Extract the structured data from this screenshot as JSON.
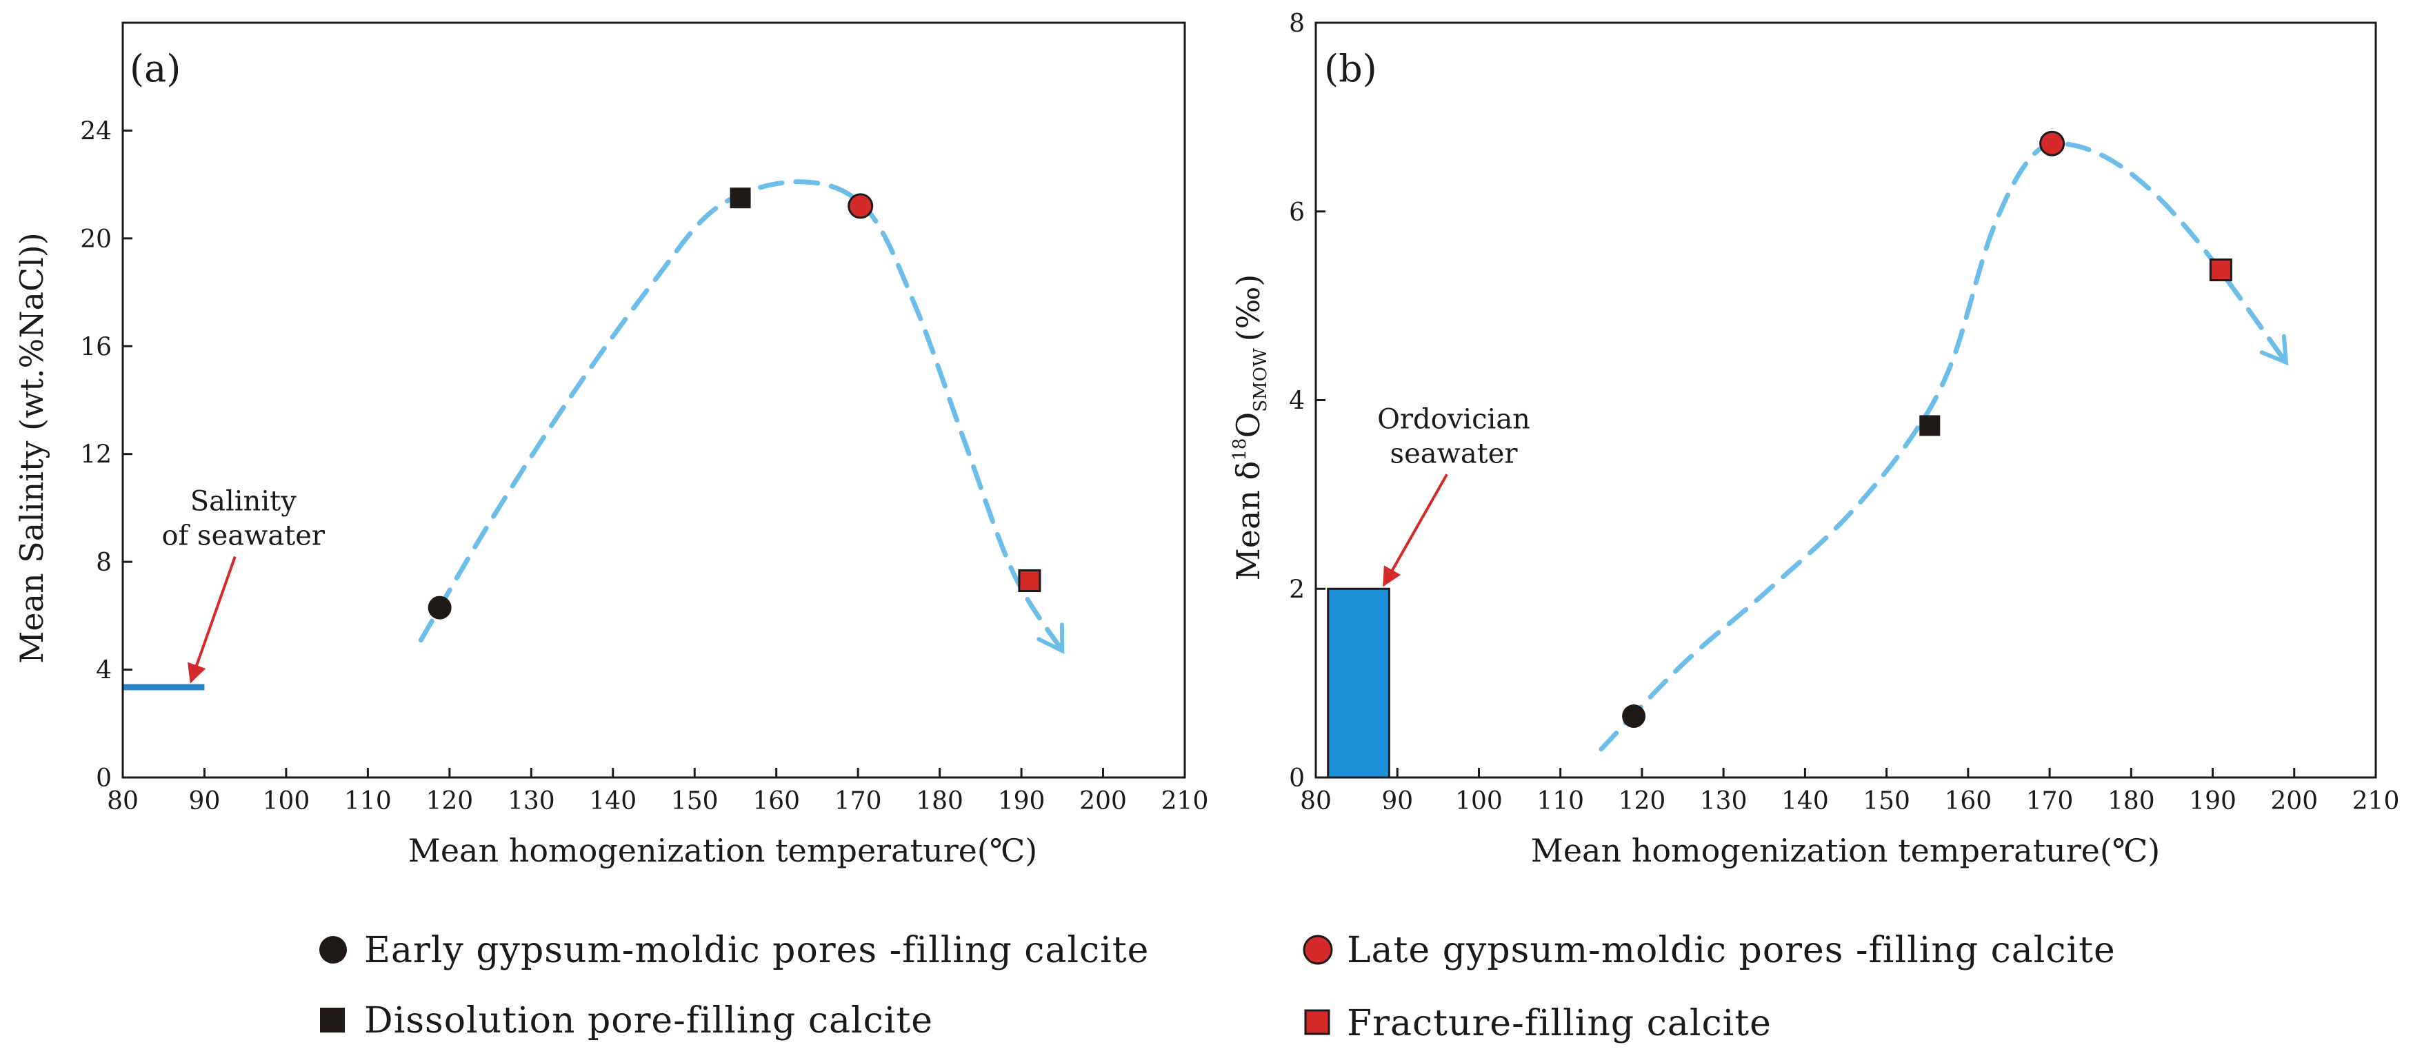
{
  "colors": {
    "early": "#1f1a17",
    "late": "#d42a2a",
    "dissolution": "#1f1a17",
    "fracture": "#d42a2a",
    "trend": "#6cbde9",
    "seawater_line": "#2a86c8",
    "seawater_box": "#1c8fd8",
    "arrow": "#d42a2a"
  },
  "legend": {
    "early": "Early gypsum-moldic pores -filling calcite",
    "dissolution": "Dissolution pore-filling calcite",
    "late": "Late gypsum-moldic pores -filling calcite",
    "fracture": "Fracture-filling calcite"
  },
  "chart_data": [
    {
      "panel": "(a)",
      "type": "scatter",
      "xlabel": "Mean homogenization temperature(℃)",
      "ylabel": "Mean Salinity (wt.%NaCl))",
      "xlim": [
        80,
        210
      ],
      "ylim": [
        0,
        28
      ],
      "xticks": [
        80,
        90,
        100,
        110,
        120,
        130,
        140,
        150,
        160,
        170,
        180,
        190,
        200,
        210
      ],
      "yticks": [
        0,
        4,
        8,
        12,
        16,
        20,
        24
      ],
      "series": [
        {
          "name": "Early gypsum-moldic pores -filling calcite",
          "marker": "circle",
          "color": "#1f1a17",
          "points": [
            [
              118.8,
              6.3
            ]
          ]
        },
        {
          "name": "Dissolution pore-filling calcite",
          "marker": "square",
          "color": "#1f1a17",
          "points": [
            [
              155.6,
              21.5
            ]
          ]
        },
        {
          "name": "Late gypsum-moldic pores -filling calcite",
          "marker": "circle",
          "color": "#d42a2a",
          "points": [
            [
              170.3,
              21.2
            ]
          ]
        },
        {
          "name": "Fracture-filling calcite",
          "marker": "square",
          "color": "#d42a2a",
          "points": [
            [
              191,
              7.3
            ]
          ]
        }
      ],
      "trend": [
        [
          116.5,
          5.1
        ],
        [
          125,
          9.5
        ],
        [
          135,
          14.2
        ],
        [
          145,
          18.4
        ],
        [
          153,
          21.2
        ],
        [
          163,
          22.1
        ],
        [
          171,
          21.1
        ],
        [
          177,
          17.5
        ],
        [
          183,
          12.5
        ],
        [
          189,
          7.6
        ],
        [
          195,
          4.7
        ]
      ],
      "seawater_line": {
        "x": [
          80,
          90
        ],
        "y": 3.35
      },
      "annotation": {
        "line1": "Salinity",
        "line2": "of seawater",
        "text_xy": [
          88,
          8.5
        ],
        "arrow_to": [
          88,
          3.35
        ]
      }
    },
    {
      "panel": "(b)",
      "type": "scatter",
      "xlabel": "Mean homogenization temperature(℃)",
      "ylabel_main": "Mean δ",
      "ylabel_sup": "18",
      "ylabel_o": "O",
      "ylabel_sub": "SMOW",
      "ylabel_unit": "(‰)",
      "xlim": [
        80,
        210
      ],
      "ylim": [
        0,
        8
      ],
      "xticks": [
        80,
        90,
        100,
        110,
        120,
        130,
        140,
        150,
        160,
        170,
        180,
        190,
        200,
        210
      ],
      "yticks": [
        0,
        2,
        4,
        6,
        8
      ],
      "series": [
        {
          "name": "Early gypsum-moldic pores -filling calcite",
          "marker": "circle",
          "color": "#1f1a17",
          "points": [
            [
              119,
              0.65
            ]
          ]
        },
        {
          "name": "Dissolution pore-filling calcite",
          "marker": "square",
          "color": "#1f1a17",
          "points": [
            [
              155.3,
              3.73
            ]
          ]
        },
        {
          "name": "Late gypsum-moldic pores -filling calcite",
          "marker": "circle",
          "color": "#d42a2a",
          "points": [
            [
              170.3,
              6.72
            ]
          ]
        },
        {
          "name": "Fracture-filling calcite",
          "marker": "square",
          "color": "#d42a2a",
          "points": [
            [
              191,
              5.38
            ]
          ]
        }
      ],
      "trend": [
        [
          115,
          0.3
        ],
        [
          125,
          1.2
        ],
        [
          135,
          1.95
        ],
        [
          145,
          2.75
        ],
        [
          153,
          3.6
        ],
        [
          158,
          4.4
        ],
        [
          163,
          5.8
        ],
        [
          168,
          6.6
        ],
        [
          173,
          6.7
        ],
        [
          180,
          6.4
        ],
        [
          188,
          5.7
        ],
        [
          199,
          4.4
        ]
      ],
      "seawater_box": {
        "x": [
          81.5,
          89
        ],
        "y": [
          0,
          2
        ]
      },
      "annotation": {
        "line1": "Ordovician",
        "line2": "seawater",
        "text_xy": [
          91,
          3.3
        ],
        "arrow_to": [
          88,
          1.98
        ]
      }
    }
  ]
}
